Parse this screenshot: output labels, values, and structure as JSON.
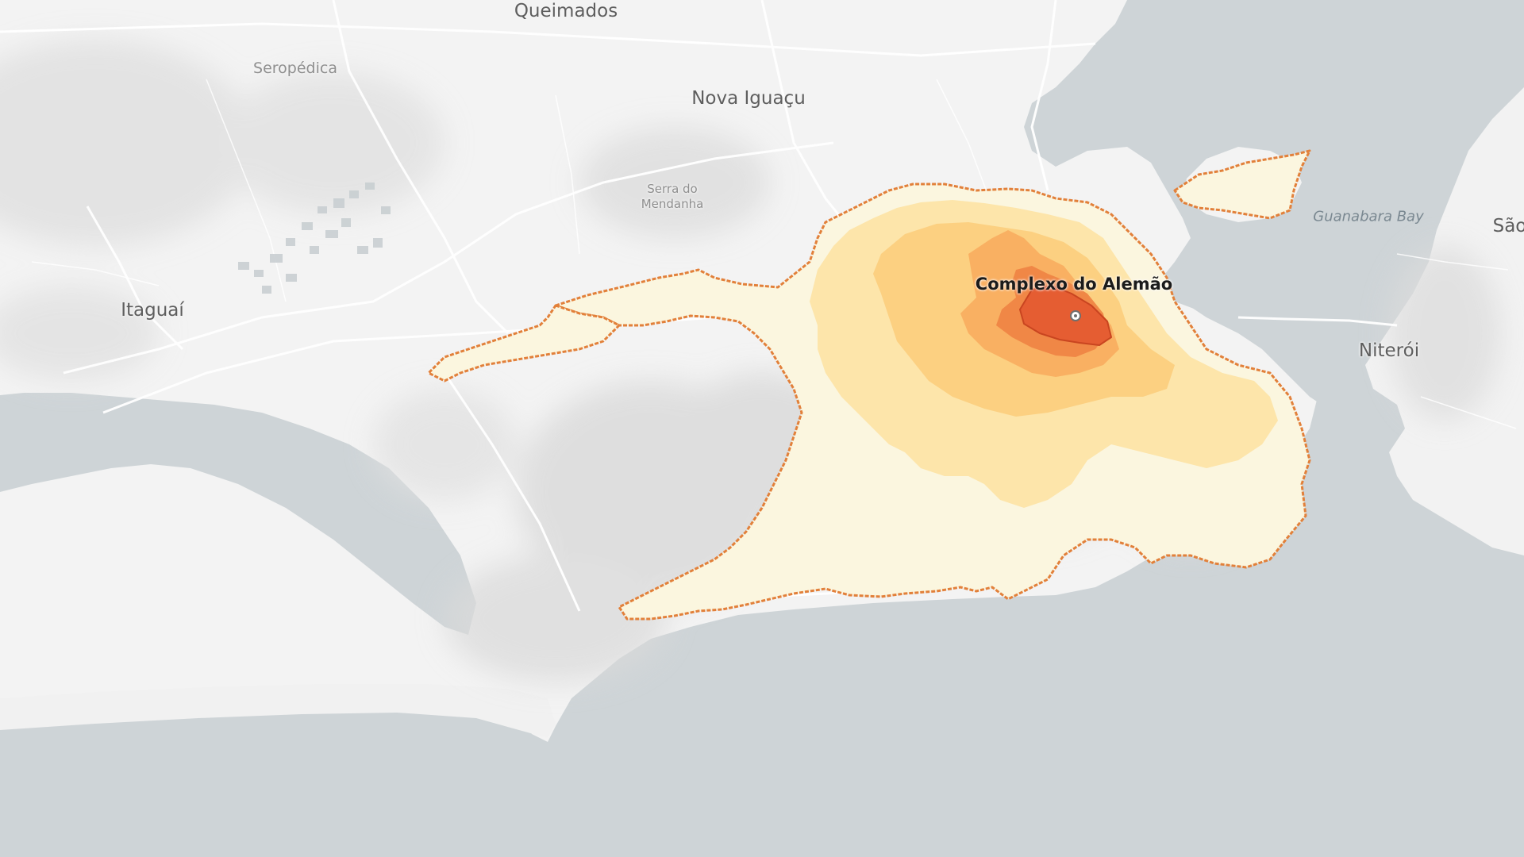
{
  "map": {
    "colors": {
      "water": "#ced4d7",
      "land": "#f2f2f2",
      "roads": "#ffffff",
      "contour_outline": "#e2803a",
      "band_1": "#fbf5dc",
      "band_2": "#fde6a8",
      "band_3": "#fccf7c",
      "band_4": "#f8ad5e",
      "band_5": "#ef8545",
      "band_6": "#e85e31"
    },
    "labels": {
      "queimados": "Queimados",
      "seropedica": "Seropédica",
      "nova_iguacu": "Nova Iguaçu",
      "serra_line1": "Serra do",
      "serra_line2": "Mendanha",
      "itaguai": "Itaguaí",
      "guanabara": "Guanabara Bay",
      "sao": "São",
      "niteroi": "Niterói",
      "origin": "Complexo do Alemão"
    }
  }
}
